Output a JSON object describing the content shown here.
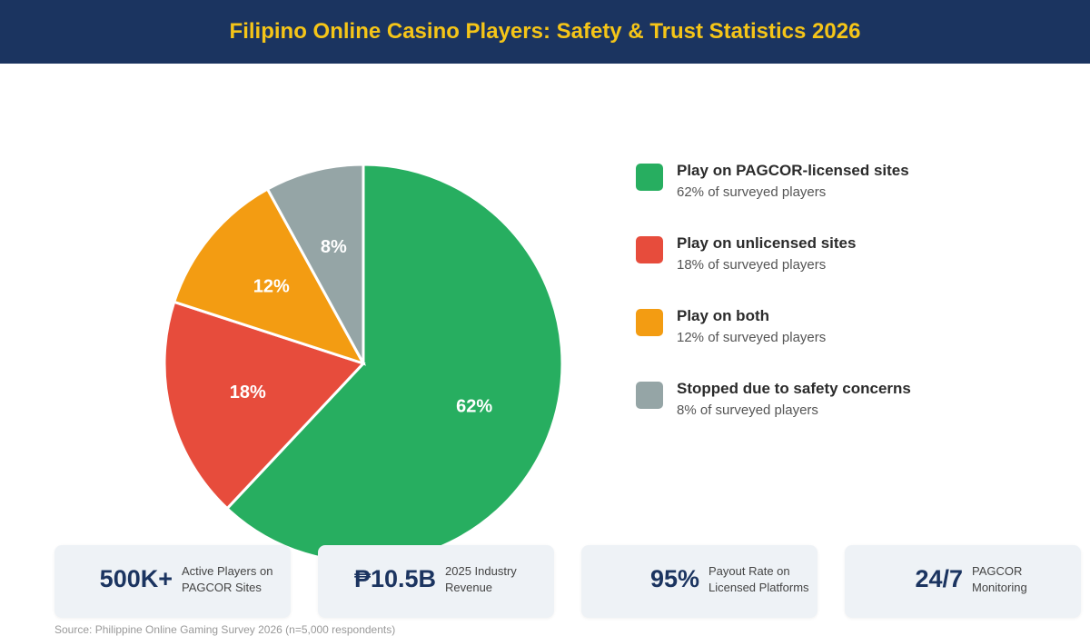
{
  "header": {
    "title": "Filipino Online Casino Players: Safety & Trust Statistics 2026"
  },
  "chart_data": {
    "type": "pie",
    "title": "Filipino Online Casino Players: Safety & Trust Statistics 2026",
    "slices": [
      {
        "label": "Play on PAGCOR-licensed sites",
        "value": 62,
        "display": "62%",
        "color": "#27ae60"
      },
      {
        "label": "Play on unlicensed sites",
        "value": 18,
        "display": "18%",
        "color": "#e74c3c"
      },
      {
        "label": "Play on both",
        "value": 12,
        "display": "12%",
        "color": "#f39c12"
      },
      {
        "label": "Stopped due to safety concerns",
        "value": 8,
        "display": "8%",
        "color": "#95a5a6"
      }
    ],
    "legend_position": "right"
  },
  "legend": {
    "items": [
      {
        "title": "Play on PAGCOR-licensed sites",
        "sub": "62% of surveyed players"
      },
      {
        "title": "Play on unlicensed sites",
        "sub": "18% of surveyed players"
      },
      {
        "title": "Play on both",
        "sub": "12% of surveyed players"
      },
      {
        "title": "Stopped due to safety concerns",
        "sub": "8% of surveyed players"
      }
    ]
  },
  "stats": [
    {
      "value": "500K+",
      "label": "Active Players on PAGCOR Sites"
    },
    {
      "value": "₱10.5B",
      "label": "2025 Industry Revenue"
    },
    {
      "value": "95%",
      "label": "Payout Rate on Licensed Platforms"
    },
    {
      "value": "24/7",
      "label": "PAGCOR Monitoring"
    }
  ],
  "source": "Source: Philippine Online Gaming Survey 2026 (n=5,000 respondents)"
}
